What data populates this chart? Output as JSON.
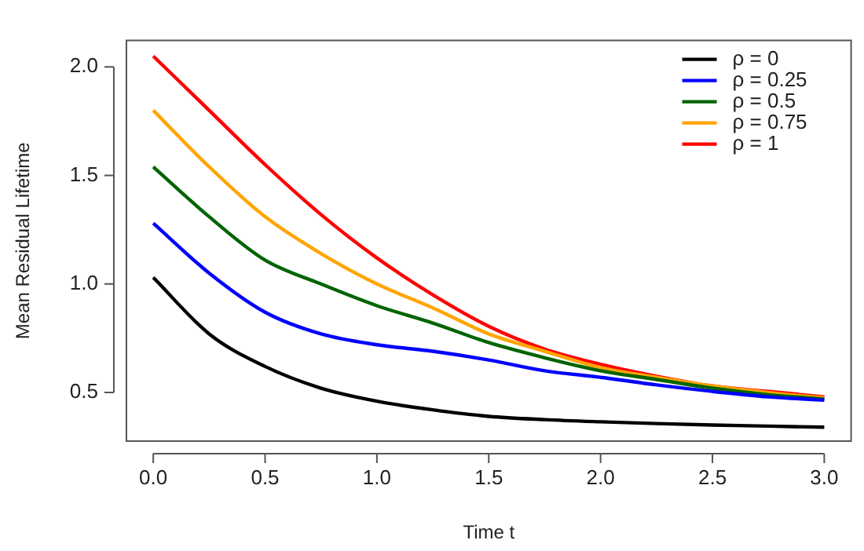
{
  "chart_data": {
    "type": "line",
    "xlabel": "Time t",
    "ylabel": "Mean Residual Lifetime",
    "x": [
      0,
      0.25,
      0.5,
      0.75,
      1,
      1.25,
      1.5,
      1.75,
      2,
      2.25,
      2.5,
      2.75,
      3
    ],
    "series": [
      {
        "name": "ρ = 0",
        "color": "#000000",
        "values": [
          1.03,
          0.77,
          0.62,
          0.52,
          0.46,
          0.42,
          0.39,
          0.375,
          0.365,
          0.357,
          0.35,
          0.345,
          0.34
        ]
      },
      {
        "name": "ρ = 0.25",
        "color": "#0000ff",
        "values": [
          1.28,
          1.05,
          0.87,
          0.77,
          0.72,
          0.69,
          0.65,
          0.6,
          0.57,
          0.535,
          0.505,
          0.48,
          0.465
        ]
      },
      {
        "name": "ρ = 0.5",
        "color": "#006400",
        "values": [
          1.54,
          1.31,
          1.11,
          1.0,
          0.9,
          0.82,
          0.73,
          0.66,
          0.6,
          0.56,
          0.52,
          0.49,
          0.47
        ]
      },
      {
        "name": "ρ = 0.75",
        "color": "#ffa500",
        "values": [
          1.8,
          1.54,
          1.31,
          1.14,
          1.0,
          0.89,
          0.77,
          0.69,
          0.615,
          0.57,
          0.53,
          0.5,
          0.475
        ]
      },
      {
        "name": "ρ = 1",
        "color": "#ff0000",
        "values": [
          2.05,
          1.8,
          1.55,
          1.32,
          1.12,
          0.95,
          0.805,
          0.7,
          0.63,
          0.575,
          0.53,
          0.505,
          0.48
        ]
      }
    ],
    "xlim": [
      -0.12,
      3.12
    ],
    "xticks": [
      {
        "value": 0,
        "label": "0.0"
      },
      0.5,
      {
        "value": 1,
        "label": "1.0"
      },
      1.5,
      {
        "value": 2,
        "label": "2.0"
      },
      2.5,
      {
        "value": 3,
        "label": "3.0"
      }
    ],
    "ylim": [
      0.276,
      2.122
    ],
    "yticks": [
      0.5,
      {
        "value": 1,
        "label": "1.0"
      },
      1.5,
      {
        "value": 2,
        "label": "2.0"
      }
    ],
    "grid": false,
    "legend": "top right",
    "marker": "none",
    "line_style": "solid"
  }
}
